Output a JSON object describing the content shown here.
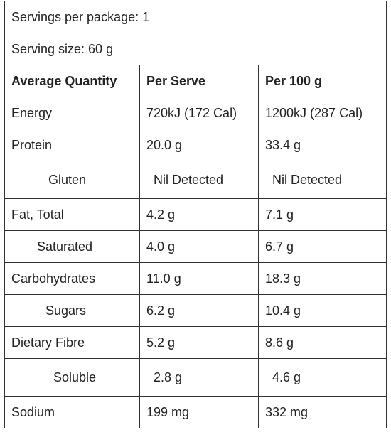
{
  "servings_per_package": "Servings per package: 1",
  "serving_size": "Serving size: 60 g",
  "table": {
    "header": [
      "Average Quantity",
      "Per Serve",
      "Per 100 g"
    ],
    "rows": [
      [
        "Energy",
        "720kJ (172 Cal)",
        "1200kJ (287 Cal)"
      ],
      [
        "Protein",
        "20.0 g",
        "33.4 g"
      ],
      [
        "Gluten",
        "Nil Detected",
        "Nil Detected"
      ],
      [
        "Fat, Total",
        "4.2 g",
        "7.1 g"
      ],
      [
        "Saturated",
        "4.0 g",
        "6.7 g"
      ],
      [
        "Carbohydrates",
        "11.0 g",
        "18.3 g"
      ],
      [
        "Sugars",
        "6.2 g",
        "10.4 g"
      ],
      [
        "Dietary Fibre",
        "5.2 g",
        "8.6 g"
      ],
      [
        "Soluble",
        "2.8 g",
        "4.6 g"
      ],
      [
        "Sodium",
        "199 mg",
        "332 mg"
      ]
    ]
  }
}
